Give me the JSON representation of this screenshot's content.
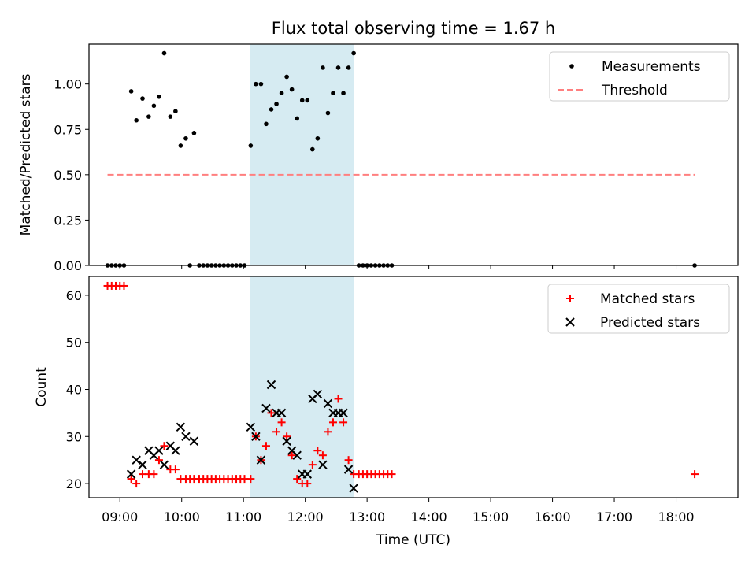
{
  "figure": {
    "title": "Flux total observing time = 1.67 h",
    "xlabel": "Time (UTC)",
    "x_tick_labels": [
      "09:00",
      "10:00",
      "11:00",
      "12:00",
      "13:00",
      "14:00",
      "15:00",
      "16:00",
      "17:00",
      "18:00"
    ]
  },
  "chart_data": [
    {
      "type": "scatter",
      "ylabel": "Matched/Predicted stars",
      "xlim": [
        "08:30",
        "19:00"
      ],
      "ylim": [
        0,
        1.22
      ],
      "y_tick_labels": [
        "0.00",
        "0.25",
        "0.50",
        "0.75",
        "1.00"
      ],
      "legend": {
        "position": "top-right",
        "entries": [
          "Measurements",
          "Threshold"
        ]
      },
      "highlight_span": {
        "start": "11:06",
        "end": "12:47",
        "color": "#add8e6"
      },
      "series": [
        {
          "name": "Measurements",
          "color": "#000000",
          "marker": "dot",
          "points": [
            [
              "08:48",
              0
            ],
            [
              "08:52",
              0
            ],
            [
              "08:56",
              0
            ],
            [
              "09:00",
              0
            ],
            [
              "09:04",
              0
            ],
            [
              "09:11",
              0.96
            ],
            [
              "09:16",
              0.8
            ],
            [
              "09:22",
              0.92
            ],
            [
              "09:28",
              0.82
            ],
            [
              "09:33",
              0.88
            ],
            [
              "09:38",
              0.93
            ],
            [
              "09:43",
              1.17
            ],
            [
              "09:49",
              0.82
            ],
            [
              "09:54",
              0.85
            ],
            [
              "09:59",
              0.66
            ],
            [
              "10:04",
              0.7
            ],
            [
              "10:08",
              0
            ],
            [
              "10:12",
              0.73
            ],
            [
              "10:17",
              0
            ],
            [
              "10:21",
              0
            ],
            [
              "10:25",
              0
            ],
            [
              "10:29",
              0
            ],
            [
              "10:33",
              0
            ],
            [
              "10:37",
              0
            ],
            [
              "10:41",
              0
            ],
            [
              "10:45",
              0
            ],
            [
              "10:49",
              0
            ],
            [
              "10:53",
              0
            ],
            [
              "10:57",
              0
            ],
            [
              "11:01",
              0
            ],
            [
              "11:07",
              0.66
            ],
            [
              "11:12",
              1.0
            ],
            [
              "11:17",
              1.0
            ],
            [
              "11:22",
              0.78
            ],
            [
              "11:27",
              0.86
            ],
            [
              "11:32",
              0.89
            ],
            [
              "11:37",
              0.95
            ],
            [
              "11:42",
              1.04
            ],
            [
              "11:47",
              0.97
            ],
            [
              "11:52",
              0.81
            ],
            [
              "11:57",
              0.91
            ],
            [
              "12:02",
              0.91
            ],
            [
              "12:07",
              0.64
            ],
            [
              "12:12",
              0.7
            ],
            [
              "12:17",
              1.09
            ],
            [
              "12:22",
              0.84
            ],
            [
              "12:27",
              0.95
            ],
            [
              "12:32",
              1.09
            ],
            [
              "12:37",
              0.95
            ],
            [
              "12:42",
              1.09
            ],
            [
              "12:47",
              1.17
            ],
            [
              "12:52",
              0
            ],
            [
              "12:56",
              0
            ],
            [
              "13:00",
              0
            ],
            [
              "13:04",
              0
            ],
            [
              "13:08",
              0
            ],
            [
              "13:12",
              0
            ],
            [
              "13:16",
              0
            ],
            [
              "13:20",
              0
            ],
            [
              "13:24",
              0
            ],
            [
              "18:18",
              0
            ]
          ]
        },
        {
          "name": "Threshold",
          "color": "#ff7f7f",
          "style": "dashed",
          "x": [
            "08:48",
            "18:18"
          ],
          "y": [
            0.5,
            0.5
          ]
        }
      ]
    },
    {
      "type": "scatter",
      "ylabel": "Count",
      "xlim": [
        "08:30",
        "19:00"
      ],
      "ylim": [
        17,
        64
      ],
      "y_tick_labels": [
        "20",
        "30",
        "40",
        "50",
        "60"
      ],
      "legend": {
        "position": "top-right",
        "entries": [
          "Matched stars",
          "Predicted stars"
        ]
      },
      "highlight_span": {
        "start": "11:06",
        "end": "12:47",
        "color": "#add8e6"
      },
      "series": [
        {
          "name": "Matched stars",
          "color": "#ff0000",
          "marker": "plus",
          "points": [
            [
              "08:48",
              62
            ],
            [
              "08:52",
              62
            ],
            [
              "08:56",
              62
            ],
            [
              "09:00",
              62
            ],
            [
              "09:04",
              62
            ],
            [
              "09:11",
              21
            ],
            [
              "09:16",
              20
            ],
            [
              "09:22",
              22
            ],
            [
              "09:28",
              22
            ],
            [
              "09:33",
              22
            ],
            [
              "09:38",
              25
            ],
            [
              "09:43",
              28
            ],
            [
              "09:49",
              23
            ],
            [
              "09:54",
              23
            ],
            [
              "09:59",
              21
            ],
            [
              "10:04",
              21
            ],
            [
              "10:08",
              21
            ],
            [
              "10:12",
              21
            ],
            [
              "10:17",
              21
            ],
            [
              "10:21",
              21
            ],
            [
              "10:25",
              21
            ],
            [
              "10:29",
              21
            ],
            [
              "10:33",
              21
            ],
            [
              "10:37",
              21
            ],
            [
              "10:41",
              21
            ],
            [
              "10:45",
              21
            ],
            [
              "10:49",
              21
            ],
            [
              "10:53",
              21
            ],
            [
              "10:57",
              21
            ],
            [
              "11:01",
              21
            ],
            [
              "11:07",
              21
            ],
            [
              "11:12",
              30
            ],
            [
              "11:17",
              25
            ],
            [
              "11:22",
              28
            ],
            [
              "11:27",
              35
            ],
            [
              "11:32",
              31
            ],
            [
              "11:37",
              33
            ],
            [
              "11:42",
              30
            ],
            [
              "11:47",
              26
            ],
            [
              "11:52",
              21
            ],
            [
              "11:57",
              20
            ],
            [
              "12:02",
              20
            ],
            [
              "12:07",
              24
            ],
            [
              "12:12",
              27
            ],
            [
              "12:17",
              26
            ],
            [
              "12:22",
              31
            ],
            [
              "12:27",
              33
            ],
            [
              "12:32",
              38
            ],
            [
              "12:37",
              33
            ],
            [
              "12:42",
              25
            ],
            [
              "12:47",
              22
            ],
            [
              "12:52",
              22
            ],
            [
              "12:56",
              22
            ],
            [
              "13:00",
              22
            ],
            [
              "13:04",
              22
            ],
            [
              "13:08",
              22
            ],
            [
              "13:12",
              22
            ],
            [
              "13:16",
              22
            ],
            [
              "13:20",
              22
            ],
            [
              "13:24",
              22
            ],
            [
              "18:18",
              22
            ]
          ]
        },
        {
          "name": "Predicted stars",
          "color": "#000000",
          "marker": "x",
          "points": [
            [
              "09:11",
              22
            ],
            [
              "09:16",
              25
            ],
            [
              "09:22",
              24
            ],
            [
              "09:28",
              27
            ],
            [
              "09:33",
              26
            ],
            [
              "09:38",
              27
            ],
            [
              "09:43",
              24
            ],
            [
              "09:49",
              28
            ],
            [
              "09:54",
              27
            ],
            [
              "09:59",
              32
            ],
            [
              "10:04",
              30
            ],
            [
              "10:12",
              29
            ],
            [
              "11:07",
              32
            ],
            [
              "11:12",
              30
            ],
            [
              "11:17",
              25
            ],
            [
              "11:22",
              36
            ],
            [
              "11:27",
              41
            ],
            [
              "11:32",
              35
            ],
            [
              "11:37",
              35
            ],
            [
              "11:42",
              29
            ],
            [
              "11:47",
              27
            ],
            [
              "11:52",
              26
            ],
            [
              "11:57",
              22
            ],
            [
              "12:02",
              22
            ],
            [
              "12:07",
              38
            ],
            [
              "12:12",
              39
            ],
            [
              "12:17",
              24
            ],
            [
              "12:22",
              37
            ],
            [
              "12:27",
              35
            ],
            [
              "12:32",
              35
            ],
            [
              "12:37",
              35
            ],
            [
              "12:42",
              23
            ],
            [
              "12:47",
              19
            ]
          ]
        }
      ]
    }
  ]
}
